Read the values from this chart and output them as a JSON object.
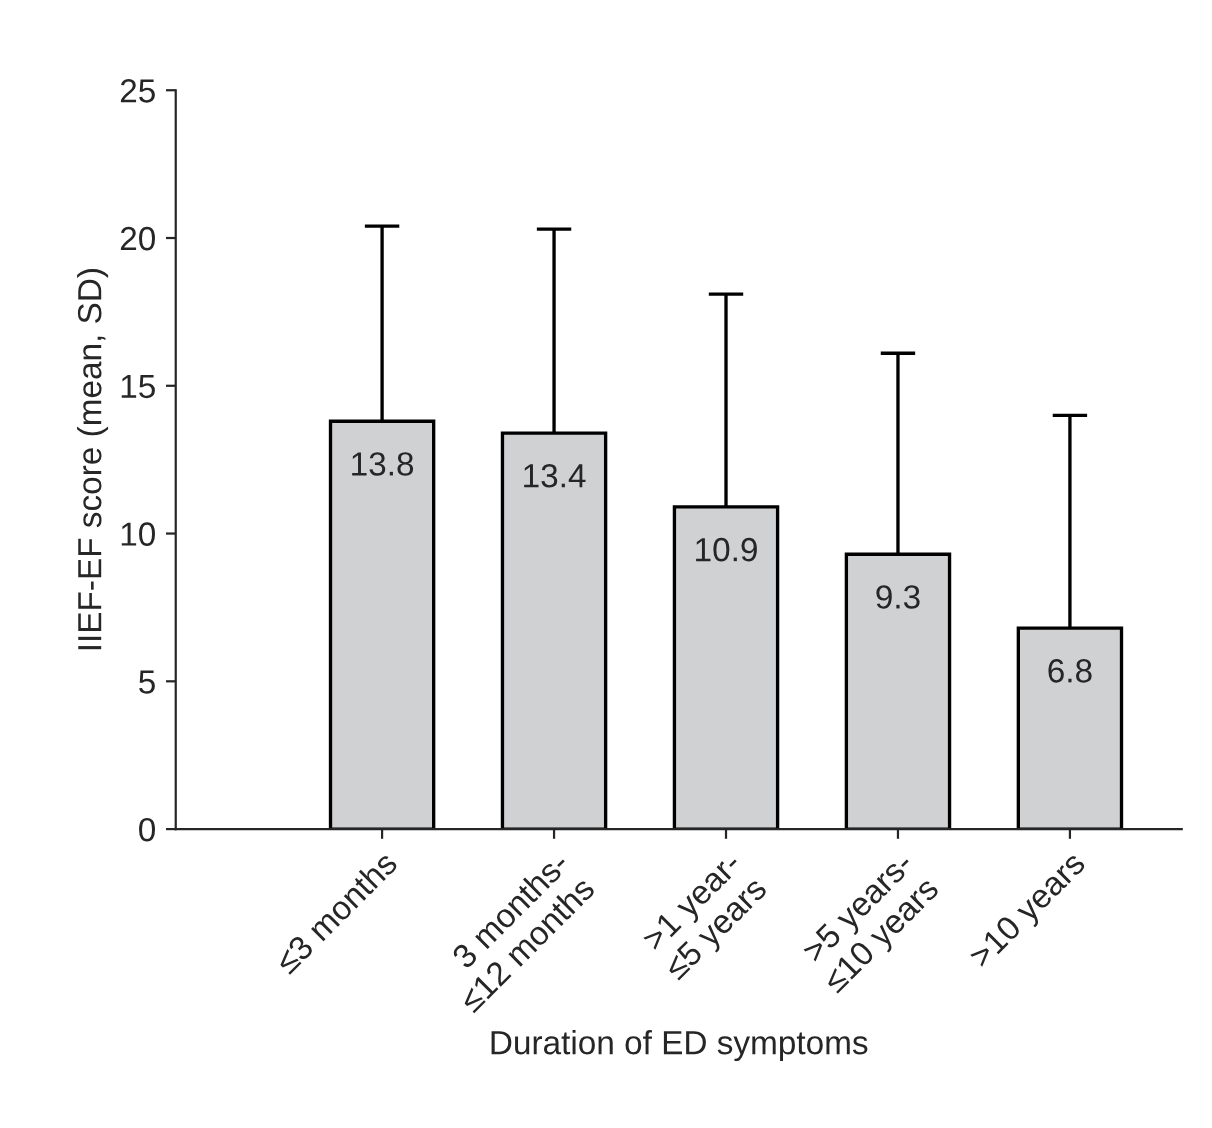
{
  "chart_data": {
    "type": "bar",
    "xlabel": "Duration of ED symptoms",
    "ylabel": "IIEF-EF score (mean, SD)",
    "categories": [
      "≤3 months",
      "3 months-\n≤12 months",
      ">1 year-\n≤5 years",
      ">5 years-\n≤10 years",
      ">10 years"
    ],
    "values": [
      13.8,
      13.4,
      10.9,
      9.3,
      6.8
    ],
    "errors": [
      [
        13.8,
        20.4
      ],
      [
        13.4,
        20.3
      ],
      [
        10.9,
        18.1
      ],
      [
        9.3,
        16.1
      ],
      [
        6.8,
        14.0
      ]
    ],
    "color": "#d0d1d3",
    "data_labels": true,
    "ylim": [
      0,
      25
    ],
    "yticks": [
      0,
      5,
      10,
      15,
      20,
      25
    ],
    "grid": false,
    "legend": false
  }
}
